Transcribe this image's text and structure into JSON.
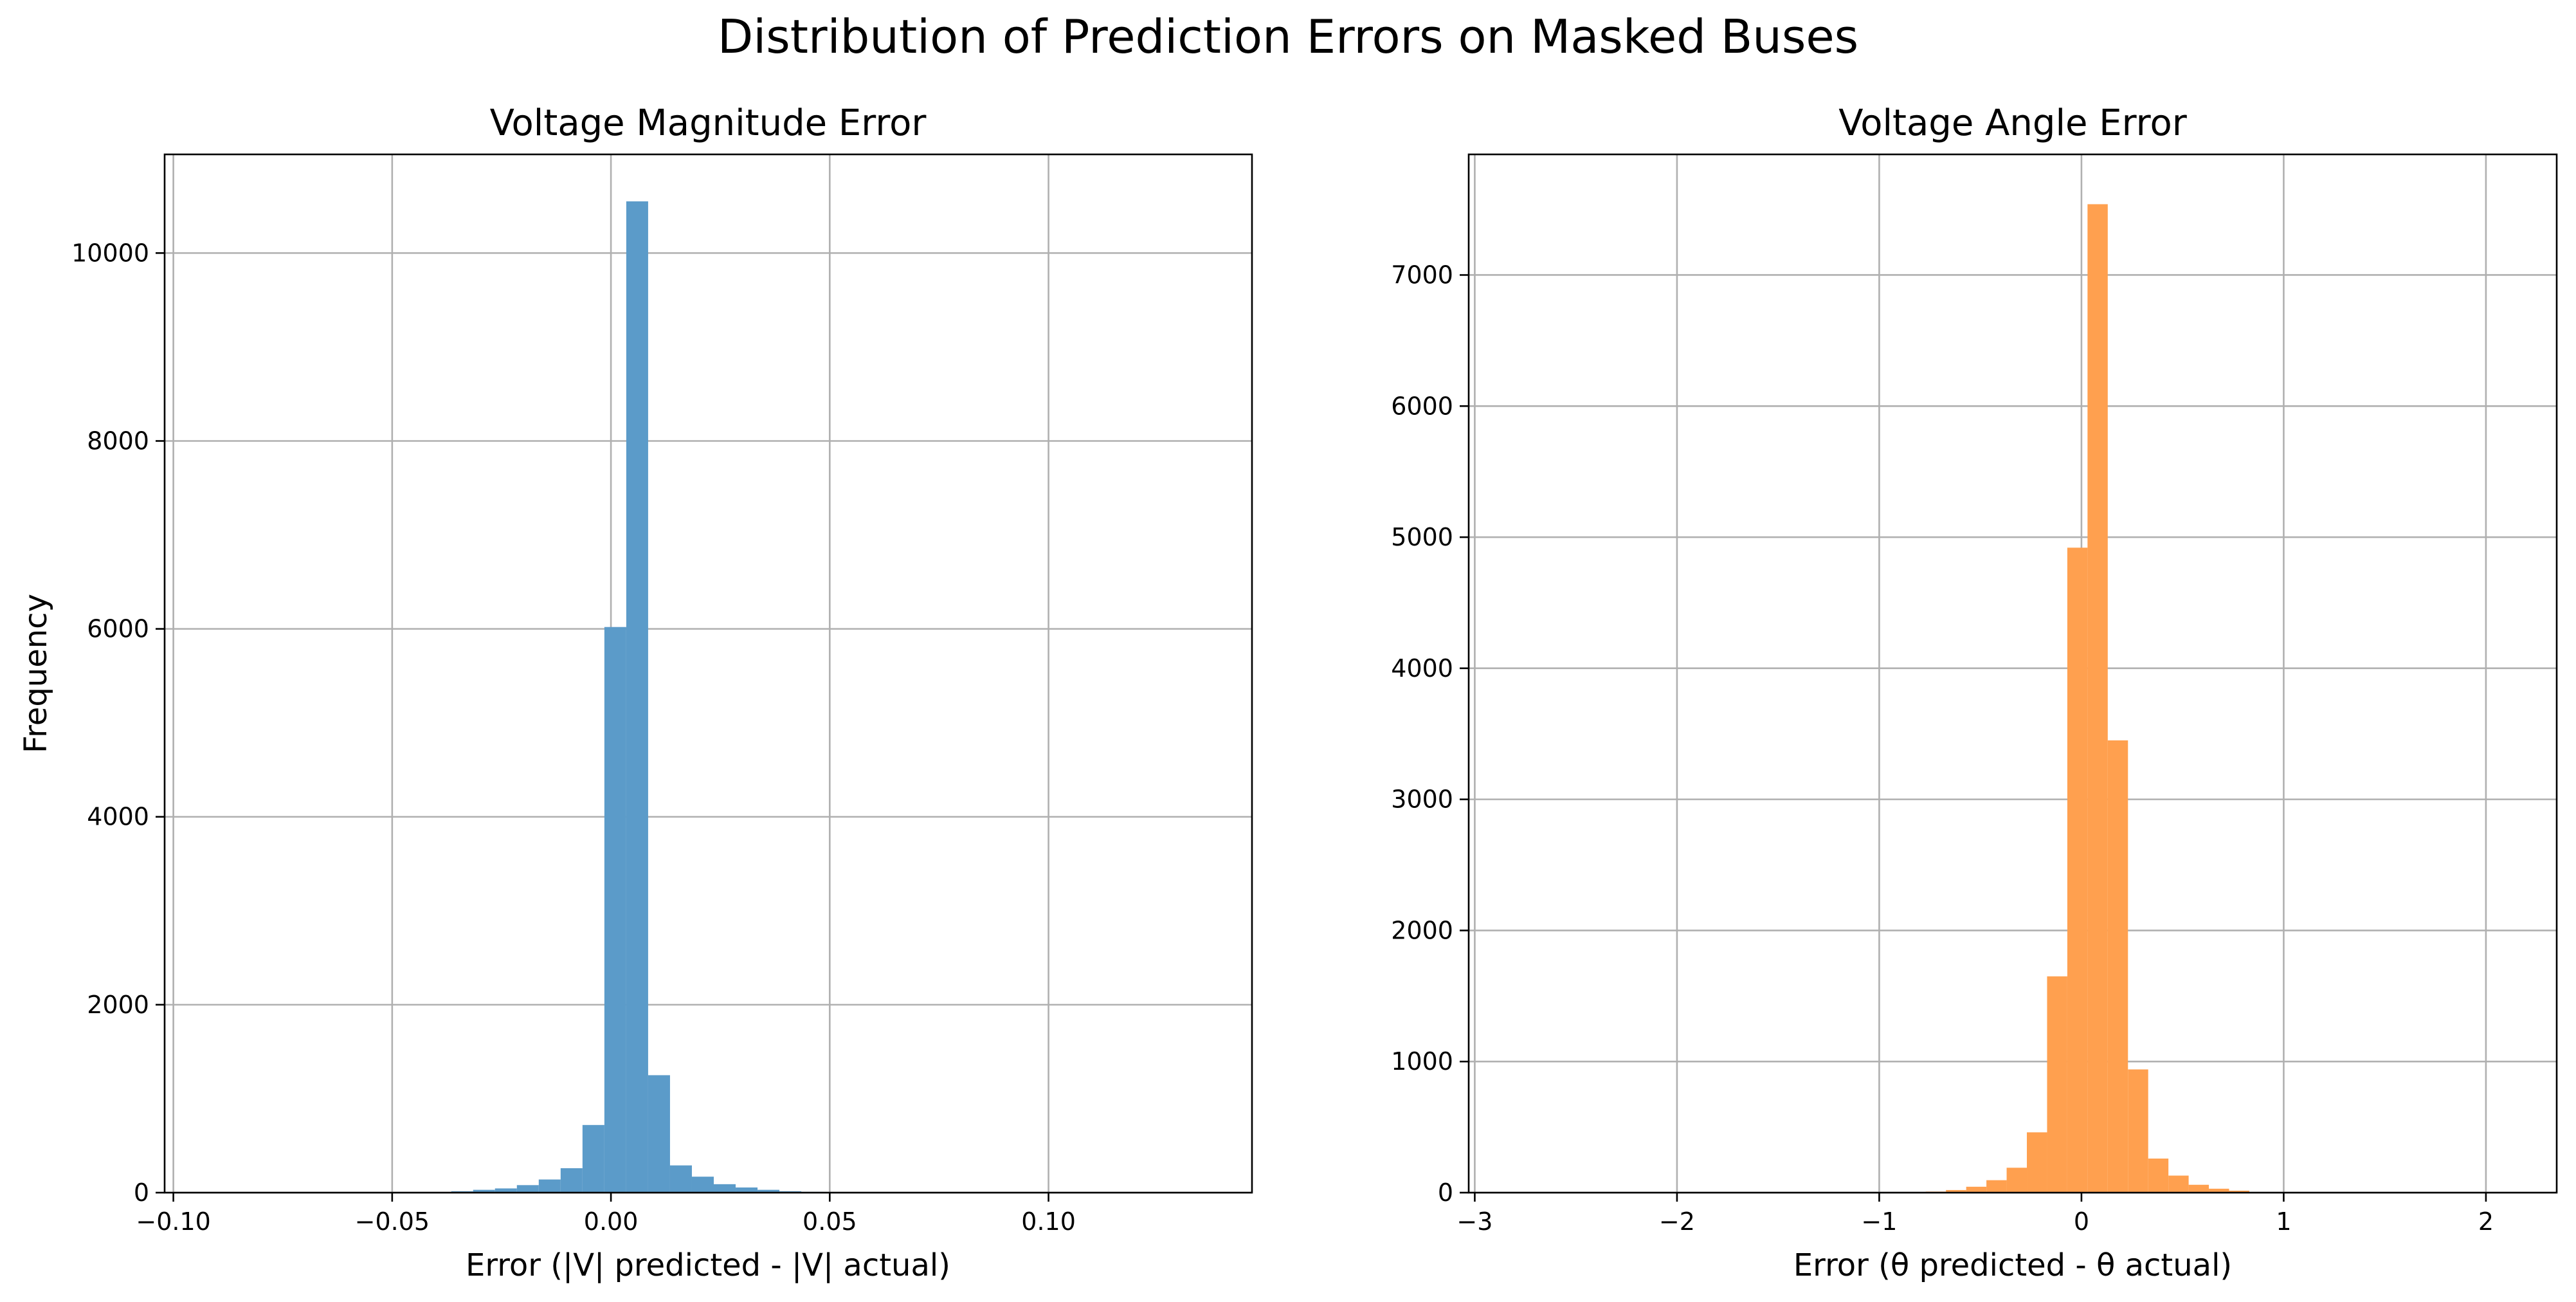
{
  "figure": {
    "title": "Distribution of Prediction Errors on Masked Buses"
  },
  "chart_data": [
    {
      "type": "histogram",
      "title": "Voltage Magnitude Error",
      "xlabel": "Error (|V| predicted - |V| actual)",
      "ylabel": "Frequency",
      "xlim": [
        -0.102,
        0.1465
      ],
      "ylim": [
        0,
        11050
      ],
      "xticks": [
        -0.1,
        -0.05,
        0.0,
        0.05,
        0.1
      ],
      "xtick_labels": [
        "−0.10",
        "−0.05",
        "0.00",
        "0.05",
        "0.10"
      ],
      "yticks": [
        0,
        2000,
        4000,
        6000,
        8000,
        10000
      ],
      "ytick_labels": [
        "0",
        "2000",
        "4000",
        "6000",
        "8000",
        "10000"
      ],
      "grid": true,
      "color": "#5b9bc9",
      "bins_start": -0.0365,
      "bin_width": 0.005,
      "counts": [
        15,
        30,
        45,
        80,
        140,
        260,
        720,
        6020,
        10550,
        1250,
        290,
        170,
        90,
        55,
        30,
        15,
        8,
        4,
        2
      ]
    },
    {
      "type": "histogram",
      "title": "Voltage Angle Error",
      "xlabel": "Error (θ predicted - θ actual)",
      "ylabel": "",
      "xlim": [
        -3.03,
        2.35
      ],
      "ylim": [
        0,
        7920
      ],
      "xticks": [
        -3,
        -2,
        -1,
        0,
        1,
        2
      ],
      "xtick_labels": [
        "−3",
        "−2",
        "−1",
        "0",
        "1",
        "2"
      ],
      "yticks": [
        0,
        1000,
        2000,
        3000,
        4000,
        5000,
        6000,
        7000
      ],
      "ytick_labels": [
        "0",
        "1000",
        "2000",
        "3000",
        "4000",
        "5000",
        "6000",
        "7000"
      ],
      "grid": true,
      "color": "#ffa04f",
      "bins_start": -0.77,
      "bin_width": 0.1,
      "counts": [
        8,
        20,
        45,
        95,
        190,
        460,
        1650,
        4920,
        7540,
        3450,
        940,
        260,
        130,
        60,
        30,
        15,
        5
      ]
    }
  ]
}
